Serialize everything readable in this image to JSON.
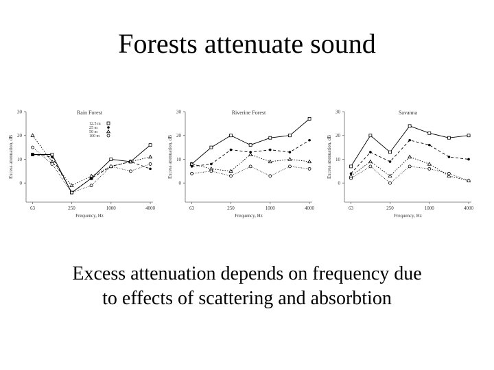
{
  "slide": {
    "title": "Forests attenuate sound",
    "caption_line1": "Excess attenuation depends on frequency due",
    "caption_line2": "to effects of scattering and absorbtion"
  },
  "chart_data": [
    {
      "type": "line",
      "title": "Rain Forest",
      "xlabel": "Frequency, Hz",
      "ylabel": "Excess attenuation, dB",
      "x_ticks": [
        "63",
        "250",
        "1000",
        "4000"
      ],
      "y_ticks": [
        0,
        10,
        20,
        30
      ],
      "ylim": [
        -8,
        30
      ],
      "x": [
        63,
        125,
        250,
        500,
        1000,
        2000,
        4000
      ],
      "legend": [
        "12.5 m",
        "25 m",
        "50 m",
        "100 m"
      ],
      "series": [
        {
          "name": "12.5 m",
          "values": [
            12,
            12,
            -4,
            2,
            10,
            9,
            16
          ]
        },
        {
          "name": "25 m",
          "values": [
            12,
            11,
            -4,
            2,
            7,
            9,
            6
          ]
        },
        {
          "name": "50 m",
          "values": [
            20,
            9,
            -1,
            3,
            7,
            9,
            11
          ]
        },
        {
          "name": "100 m",
          "values": [
            15,
            8,
            -4,
            -1,
            7,
            5,
            8
          ]
        }
      ]
    },
    {
      "type": "line",
      "title": "Riverine Forest",
      "xlabel": "Frequency, Hz",
      "ylabel": "Excess attenuation, dB",
      "x_ticks": [
        "63",
        "250",
        "1000",
        "4000"
      ],
      "y_ticks": [
        0,
        10,
        20,
        30
      ],
      "ylim": [
        -8,
        30
      ],
      "x": [
        63,
        125,
        250,
        500,
        1000,
        2000,
        4000
      ],
      "series": [
        {
          "values": [
            8,
            15,
            20,
            16,
            19,
            20,
            27
          ]
        },
        {
          "values": [
            7,
            8,
            14,
            13,
            14,
            13,
            18
          ]
        },
        {
          "values": [
            8,
            6,
            5,
            12,
            9,
            10,
            9
          ]
        },
        {
          "values": [
            4,
            5,
            3,
            7,
            3,
            7,
            6
          ]
        }
      ]
    },
    {
      "type": "line",
      "title": "Savanna",
      "xlabel": "Frequency, Hz",
      "ylabel": "Excess attenuation, dB",
      "x_ticks": [
        "63",
        "250",
        "1000",
        "4000"
      ],
      "y_ticks": [
        0,
        10,
        20,
        30
      ],
      "ylim": [
        -8,
        30
      ],
      "x": [
        63,
        125,
        250,
        500,
        1000,
        2000,
        4000
      ],
      "series": [
        {
          "values": [
            7,
            20,
            13,
            24,
            21,
            19,
            20
          ]
        },
        {
          "values": [
            4,
            13,
            9,
            18,
            16,
            11,
            10
          ]
        },
        {
          "values": [
            3,
            9,
            3,
            11,
            8,
            3,
            1
          ]
        },
        {
          "values": [
            2,
            7,
            0,
            7,
            6,
            4,
            1
          ]
        }
      ]
    }
  ]
}
